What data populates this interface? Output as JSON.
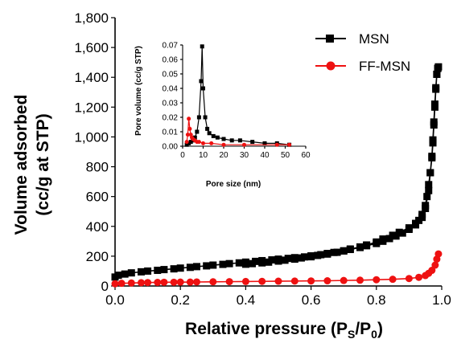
{
  "chart_data": [
    {
      "type": "line",
      "xlabel": "Relative pressure (P",
      "xlabel_sub1": "S",
      "xlabel_mid": "/P",
      "xlabel_sub2": "0",
      "xlabel_end": ")",
      "ylabel_line1": "Volume adsorbed",
      "ylabel_line2": "(cc/g at STP)",
      "xlim": [
        0,
        1.0
      ],
      "ylim": [
        0,
        1800
      ],
      "x_ticks": [
        "0.0",
        "0.2",
        "0.4",
        "0.6",
        "0.8",
        "1.0"
      ],
      "x_tick_values": [
        0,
        0.2,
        0.4,
        0.6,
        0.8,
        1.0
      ],
      "y_ticks": [
        "0",
        "200",
        "400",
        "600",
        "800",
        "1,000",
        "1,200",
        "1,400",
        "1,600",
        "1,800"
      ],
      "y_tick_values": [
        0,
        200,
        400,
        600,
        800,
        1000,
        1200,
        1400,
        1600,
        1800
      ],
      "legend_position": "top-right",
      "series": [
        {
          "name": "MSN",
          "color": "#000000",
          "marker": "square",
          "x": [
            0.0,
            0.01,
            0.03,
            0.05,
            0.08,
            0.1,
            0.13,
            0.15,
            0.18,
            0.2,
            0.23,
            0.25,
            0.28,
            0.3,
            0.33,
            0.35,
            0.38,
            0.4,
            0.43,
            0.45,
            0.48,
            0.5,
            0.53,
            0.55,
            0.58,
            0.6,
            0.63,
            0.65,
            0.68,
            0.7,
            0.72,
            0.75,
            0.77,
            0.8,
            0.82,
            0.84,
            0.86,
            0.88,
            0.9,
            0.92,
            0.93,
            0.94,
            0.95,
            0.955,
            0.96,
            0.965,
            0.97,
            0.973,
            0.976,
            0.979,
            0.982,
            0.985,
            0.988,
            0.99,
            0.988,
            0.985,
            0.982,
            0.979,
            0.976,
            0.973,
            0.97,
            0.965,
            0.96,
            0.95,
            0.94,
            0.92,
            0.9,
            0.87,
            0.85,
            0.82,
            0.8,
            0.77,
            0.75,
            0.72,
            0.7,
            0.67,
            0.65,
            0.62,
            0.6,
            0.57,
            0.55,
            0.52,
            0.5,
            0.47,
            0.45,
            0.42,
            0.4
          ],
          "values": [
            60,
            72,
            80,
            88,
            95,
            100,
            105,
            110,
            115,
            120,
            125,
            130,
            135,
            140,
            145,
            150,
            155,
            160,
            165,
            170,
            175,
            180,
            185,
            190,
            195,
            202,
            210,
            218,
            226,
            235,
            245,
            258,
            270,
            285,
            300,
            318,
            335,
            355,
            380,
            410,
            440,
            480,
            540,
            600,
            680,
            760,
            860,
            960,
            1080,
            1200,
            1320,
            1420,
            1460,
            1470,
            1460,
            1420,
            1330,
            1220,
            1100,
            980,
            870,
            760,
            640,
            520,
            460,
            420,
            390,
            360,
            340,
            315,
            295,
            275,
            262,
            248,
            236,
            225,
            214,
            205,
            196,
            188,
            180,
            173,
            167,
            160,
            155,
            150,
            146
          ]
        },
        {
          "name": "FF-MSN",
          "color": "#ee1111",
          "marker": "circle",
          "x": [
            0.0,
            0.02,
            0.05,
            0.08,
            0.1,
            0.13,
            0.15,
            0.18,
            0.2,
            0.23,
            0.25,
            0.3,
            0.35,
            0.4,
            0.45,
            0.5,
            0.55,
            0.6,
            0.65,
            0.7,
            0.75,
            0.8,
            0.85,
            0.9,
            0.93,
            0.95,
            0.96,
            0.97,
            0.98,
            0.985,
            0.99
          ],
          "values": [
            15,
            18,
            20,
            22,
            23,
            24,
            25,
            25,
            26,
            26,
            27,
            28,
            29,
            30,
            31,
            32,
            33,
            34,
            35,
            37,
            39,
            42,
            45,
            50,
            58,
            70,
            85,
            105,
            140,
            180,
            215
          ]
        }
      ]
    },
    {
      "type": "line",
      "xlabel": "Pore size (nm)",
      "ylabel": "Pore volume (cc/g STP)",
      "xlim": [
        0,
        60
      ],
      "ylim": [
        0,
        0.07
      ],
      "x_ticks": [
        "0",
        "10",
        "20",
        "30",
        "40",
        "50",
        "60"
      ],
      "x_tick_values": [
        0,
        10,
        20,
        30,
        40,
        50,
        60
      ],
      "y_ticks": [
        "0.00",
        "0.01",
        "0.02",
        "0.03",
        "0.04",
        "0.05",
        "0.06",
        "0.07"
      ],
      "y_tick_values": [
        0,
        0.01,
        0.02,
        0.03,
        0.04,
        0.05,
        0.06,
        0.07
      ],
      "series": [
        {
          "name": "MSN",
          "color": "#000000",
          "marker": "square",
          "x": [
            2,
            3,
            4,
            5,
            6,
            7,
            8,
            9,
            9.5,
            10,
            11,
            12,
            13,
            15,
            17,
            20,
            24,
            28,
            34,
            40,
            46,
            52
          ],
          "values": [
            0.001,
            0.002,
            0.003,
            0.004,
            0.006,
            0.01,
            0.02,
            0.045,
            0.069,
            0.04,
            0.02,
            0.012,
            0.009,
            0.007,
            0.006,
            0.005,
            0.004,
            0.004,
            0.003,
            0.002,
            0.002,
            0.001
          ]
        },
        {
          "name": "FF-MSN",
          "color": "#ee1111",
          "marker": "circle",
          "x": [
            2,
            2.5,
            3,
            3.5,
            4,
            4.5,
            5,
            6,
            7,
            8,
            10,
            14,
            20,
            30,
            46,
            52
          ],
          "values": [
            0.003,
            0.008,
            0.019,
            0.012,
            0.008,
            0.006,
            0.005,
            0.004,
            0.003,
            0.003,
            0.002,
            0.002,
            0.001,
            0.001,
            0.001,
            0.001
          ]
        }
      ]
    }
  ]
}
